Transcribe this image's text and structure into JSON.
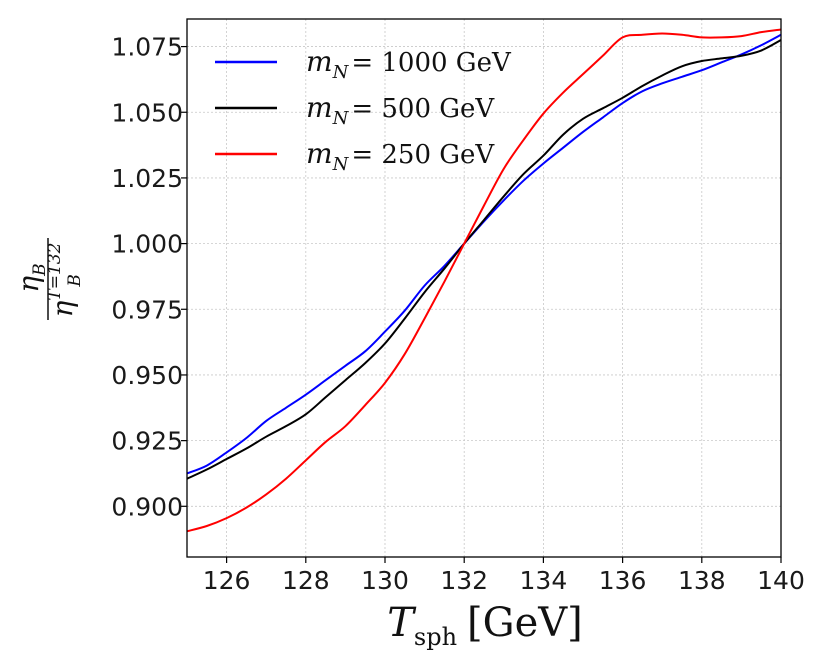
{
  "chart_data": {
    "type": "line",
    "xlabel": {
      "main": "T",
      "sub": "sph",
      "unit": "[GeV]"
    },
    "ylabel": {
      "num": "η",
      "num_sub": "B",
      "den": "η",
      "den_sub": "B",
      "den_sup": "T=132"
    },
    "xlim": [
      125,
      140
    ],
    "ylim": [
      0.8807,
      1.0855
    ],
    "xticks": [
      "126",
      "128",
      "130",
      "132",
      "134",
      "136",
      "138",
      "140"
    ],
    "xtick_values": [
      126,
      128,
      130,
      132,
      134,
      136,
      138,
      140
    ],
    "yticks": [
      "0.900",
      "0.925",
      "0.950",
      "0.975",
      "1.000",
      "1.025",
      "1.050",
      "1.075"
    ],
    "ytick_values": [
      0.9,
      0.925,
      0.95,
      0.975,
      1.0,
      1.025,
      1.05,
      1.075
    ],
    "grid": true,
    "legend_position": "top-left",
    "series": [
      {
        "name": "m_N = 1000 GeV",
        "label": {
          "var": "m",
          "sub": "N",
          "rest": "= 1000 GeV"
        },
        "color": "#0000ff",
        "x": [
          125,
          125.5,
          126,
          126.5,
          127,
          127.5,
          128,
          128.5,
          129,
          129.5,
          130,
          130.5,
          131,
          131.5,
          132,
          132.5,
          133,
          133.5,
          134,
          134.5,
          135,
          135.5,
          136,
          136.5,
          137,
          137.5,
          138,
          138.5,
          139,
          139.5,
          140
        ],
        "y": [
          0.9125,
          0.9155,
          0.9205,
          0.926,
          0.9325,
          0.9375,
          0.9425,
          0.948,
          0.9535,
          0.959,
          0.9665,
          0.9745,
          0.984,
          0.9915,
          1.0,
          1.0085,
          1.0165,
          1.024,
          1.0305,
          1.0365,
          1.0425,
          1.048,
          1.0535,
          1.058,
          1.061,
          1.0635,
          1.066,
          1.069,
          1.072,
          1.0755,
          1.0795
        ]
      },
      {
        "name": "m_N = 500 GeV",
        "label": {
          "var": "m",
          "sub": "N",
          "rest": "= 500 GeV"
        },
        "color": "#000000",
        "x": [
          125,
          125.5,
          126,
          126.5,
          127,
          127.5,
          128,
          128.5,
          129,
          129.5,
          130,
          130.5,
          131,
          131.5,
          132,
          132.5,
          133,
          133.5,
          134,
          134.5,
          135,
          135.5,
          136,
          136.5,
          137,
          137.5,
          138,
          138.5,
          139,
          139.5,
          140
        ],
        "y": [
          0.9105,
          0.914,
          0.918,
          0.922,
          0.9265,
          0.9305,
          0.935,
          0.9415,
          0.948,
          0.9545,
          0.962,
          0.9715,
          0.9815,
          0.9905,
          1.0,
          1.009,
          1.018,
          1.0265,
          1.0335,
          1.0415,
          1.0475,
          1.0515,
          1.0555,
          1.06,
          1.064,
          1.0675,
          1.0695,
          1.0705,
          1.0715,
          1.0735,
          1.0775
        ]
      },
      {
        "name": "m_N = 250 GeV",
        "label": {
          "var": "m",
          "sub": "N",
          "rest": "= 250 GeV"
        },
        "color": "#ff0000",
        "x": [
          125,
          125.5,
          126,
          126.5,
          127,
          127.5,
          128,
          128.5,
          129,
          129.5,
          130,
          130.5,
          131,
          131.5,
          132,
          132.5,
          133,
          133.5,
          134,
          134.5,
          135,
          135.5,
          136,
          136.5,
          137,
          137.5,
          138,
          138.5,
          139,
          139.5,
          140
        ],
        "y": [
          0.8905,
          0.8925,
          0.8955,
          0.8995,
          0.9045,
          0.9105,
          0.9175,
          0.9245,
          0.9305,
          0.9385,
          0.947,
          0.958,
          0.9715,
          0.9855,
          1.0,
          1.0145,
          1.0285,
          1.0395,
          1.0495,
          1.0575,
          1.0645,
          1.0715,
          1.0785,
          1.0795,
          1.08,
          1.0795,
          1.0785,
          1.0785,
          1.079,
          1.0805,
          1.0815
        ]
      }
    ]
  }
}
